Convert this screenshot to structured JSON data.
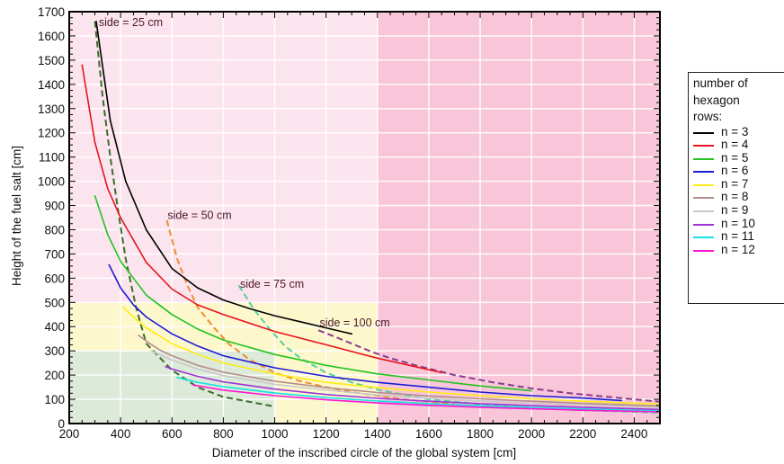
{
  "chart_data": {
    "type": "line",
    "title": "",
    "xlabel": "Diameter of the inscribed circle of the global system [cm]",
    "ylabel": "Height of the fuel salt [cm]",
    "xlim": [
      200,
      2500
    ],
    "ylim": [
      0,
      1700
    ],
    "xticks": [
      200,
      400,
      600,
      800,
      1000,
      1200,
      1400,
      1600,
      1800,
      2000,
      2200,
      2400
    ],
    "yticks": [
      0,
      100,
      200,
      300,
      400,
      500,
      600,
      700,
      800,
      900,
      1000,
      1100,
      1200,
      1300,
      1400,
      1500,
      1600,
      1700
    ],
    "grid": true,
    "legend": {
      "title": "number of hexagon rows:",
      "placement": "right, outside plot"
    },
    "shaded_regions": [
      {
        "x": [
          200,
          2500
        ],
        "y": [
          0,
          1700
        ],
        "color": "#fce4ee"
      },
      {
        "x": [
          1400,
          2500
        ],
        "y": [
          0,
          1700
        ],
        "color": "#f8c6d8"
      },
      {
        "x": [
          200,
          1400
        ],
        "y": [
          0,
          500
        ],
        "color": "#fdf7cc"
      },
      {
        "x": [
          200,
          1000
        ],
        "y": [
          0,
          300
        ],
        "color": "#dde9d9"
      }
    ],
    "series": [
      {
        "name": "n = 3",
        "color": "#000000",
        "x": [
          305,
          360,
          420,
          500,
          600,
          700,
          800,
          900,
          1000,
          1100,
          1200,
          1300
        ],
        "y": [
          1660,
          1250,
          1000,
          800,
          640,
          560,
          510,
          475,
          445,
          420,
          395,
          370
        ]
      },
      {
        "name": "n = 4",
        "color": "#e8141b",
        "x": [
          250,
          300,
          350,
          400,
          500,
          600,
          700,
          800,
          1000,
          1200,
          1400,
          1650
        ],
        "y": [
          1480,
          1160,
          970,
          850,
          665,
          555,
          490,
          450,
          380,
          325,
          270,
          210
        ]
      },
      {
        "name": "n = 5",
        "color": "#22c322",
        "x": [
          300,
          350,
          400,
          500,
          600,
          700,
          800,
          1000,
          1200,
          1400,
          1600,
          1800,
          2000
        ],
        "y": [
          940,
          780,
          670,
          530,
          450,
          390,
          345,
          285,
          240,
          205,
          180,
          155,
          135
        ]
      },
      {
        "name": "n = 6",
        "color": "#1c1cd6",
        "x": [
          355,
          400,
          450,
          500,
          600,
          700,
          800,
          1000,
          1200,
          1400,
          1600,
          1800,
          2000,
          2200,
          2350
        ],
        "y": [
          655,
          560,
          490,
          440,
          370,
          320,
          280,
          230,
          195,
          170,
          150,
          130,
          115,
          105,
          95
        ]
      },
      {
        "name": "n = 7",
        "color": "#ffec14",
        "x": [
          410,
          450,
          500,
          600,
          700,
          800,
          1000,
          1200,
          1400,
          1600,
          1800,
          2000,
          2200,
          2500
        ],
        "y": [
          480,
          440,
          395,
          330,
          285,
          250,
          205,
          170,
          148,
          130,
          115,
          102,
          92,
          80
        ]
      },
      {
        "name": "n = 8",
        "color": "#b48c8c",
        "x": [
          470,
          500,
          550,
          600,
          700,
          800,
          1000,
          1200,
          1400,
          1600,
          1800,
          2000,
          2200,
          2500
        ],
        "y": [
          365,
          340,
          305,
          280,
          240,
          212,
          175,
          148,
          128,
          114,
          102,
          92,
          83,
          72
        ]
      },
      {
        "name": "n = 9",
        "color": "#cacaca",
        "x": [
          520,
          550,
          600,
          700,
          800,
          1000,
          1200,
          1400,
          1600,
          1800,
          2000,
          2200,
          2500
        ],
        "y": [
          300,
          285,
          262,
          225,
          198,
          162,
          138,
          118,
          104,
          93,
          84,
          76,
          66
        ]
      },
      {
        "name": "n = 10",
        "color": "#9b36d6",
        "x": [
          575,
          600,
          700,
          800,
          1000,
          1200,
          1400,
          1600,
          1800,
          2000,
          2200,
          2500
        ],
        "y": [
          235,
          225,
          195,
          172,
          142,
          120,
          104,
          92,
          82,
          74,
          67,
          58
        ]
      },
      {
        "name": "n = 11",
        "color": "#14e2e2",
        "x": [
          620,
          700,
          800,
          1000,
          1200,
          1400,
          1600,
          1800,
          2000,
          2200,
          2500
        ],
        "y": [
          190,
          170,
          152,
          126,
          107,
          93,
          82,
          73,
          66,
          60,
          52
        ]
      },
      {
        "name": "n = 12",
        "color": "#ff14d2",
        "x": [
          680,
          700,
          800,
          1000,
          1200,
          1400,
          1600,
          1800,
          2000,
          2200,
          2500
        ],
        "y": [
          160,
          156,
          138,
          115,
          98,
          85,
          75,
          67,
          61,
          55,
          48
        ]
      }
    ],
    "dashed_series": [
      {
        "color": "#3a6e2a",
        "x": [
          300,
          330,
          360,
          390,
          420,
          460,
          500,
          600,
          700,
          800,
          1000
        ],
        "y": [
          1660,
          1350,
          1100,
          880,
          680,
          480,
          330,
          220,
          150,
          110,
          70
        ]
      },
      {
        "color": "#f08c32",
        "x": [
          580,
          620,
          660,
          700,
          760,
          820,
          900,
          1000,
          1100,
          1200,
          1300,
          1500,
          1700
        ],
        "y": [
          840,
          680,
          570,
          480,
          400,
          330,
          265,
          210,
          175,
          150,
          130,
          100,
          80
        ]
      },
      {
        "color": "#50d2a0",
        "x": [
          860,
          920,
          980,
          1040,
          1100,
          1200,
          1300,
          1400,
          1500,
          1600,
          1800,
          2000,
          2200,
          2500
        ],
        "y": [
          570,
          470,
          390,
          320,
          270,
          210,
          170,
          140,
          120,
          100,
          80,
          65,
          55,
          45
        ]
      },
      {
        "color": "#8c3c8c",
        "x": [
          1170,
          1230,
          1300,
          1380,
          1450,
          1550,
          1700,
          1850,
          2000,
          2150,
          2300,
          2500
        ],
        "y": [
          385,
          360,
          330,
          295,
          270,
          240,
          200,
          170,
          145,
          125,
          110,
          90
        ]
      }
    ],
    "annotations": [
      {
        "text": "side = 25 cm",
        "x": 315,
        "y": 1640
      },
      {
        "text": "side = 50 cm",
        "x": 583,
        "y": 845
      },
      {
        "text": "side = 75 cm",
        "x": 865,
        "y": 560
      },
      {
        "text": "side = 100 cm",
        "x": 1175,
        "y": 400
      }
    ]
  }
}
